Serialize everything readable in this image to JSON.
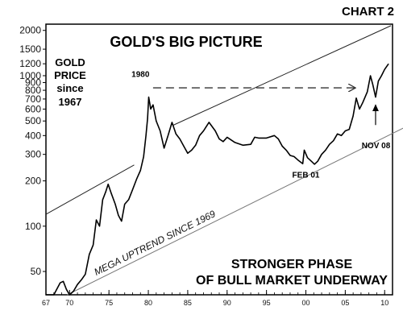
{
  "chart_label": "CHART 2",
  "chart_data": {
    "type": "line",
    "title": "GOLD'S BIG PICTURE",
    "side_label": [
      "GOLD",
      "PRICE",
      "since",
      "1967"
    ],
    "footer_caption": [
      "STRONGER PHASE",
      "OF BULL MARKET UNDERWAY"
    ],
    "y_scale": "log",
    "ylim": [
      35,
      2200
    ],
    "xlim": [
      1967,
      1911
    ],
    "y_ticks": [
      {
        "value": 2000,
        "label": "2000"
      },
      {
        "value": 1500,
        "label": "1500"
      },
      {
        "value": 1200,
        "label": "1200"
      },
      {
        "value": 1000,
        "label": "1000"
      },
      {
        "value": 900,
        "label": "900"
      },
      {
        "value": 800,
        "label": "800"
      },
      {
        "value": 700,
        "label": "700"
      },
      {
        "value": 600,
        "label": "600"
      },
      {
        "value": 500,
        "label": "500"
      },
      {
        "value": 400,
        "label": "400"
      },
      {
        "value": 300,
        "label": "300"
      },
      {
        "value": 200,
        "label": "200"
      },
      {
        "value": 100,
        "label": "100"
      },
      {
        "value": 50,
        "label": "50"
      }
    ],
    "x_ticks": [
      {
        "value": 1967,
        "label": "67"
      },
      {
        "value": 1970,
        "label": "70"
      },
      {
        "value": 1975,
        "label": "75"
      },
      {
        "value": 1980,
        "label": "80"
      },
      {
        "value": 1985,
        "label": "85"
      },
      {
        "value": 1990,
        "label": "90"
      },
      {
        "value": 1995,
        "label": "95"
      },
      {
        "value": 2000,
        "label": "00"
      },
      {
        "value": 2005,
        "label": "05"
      },
      {
        "value": 2010,
        "label": "10"
      }
    ],
    "series": [
      {
        "values": [
          {
            "x": 1967.0,
            "y": 35
          },
          {
            "x": 1968.0,
            "y": 35
          },
          {
            "x": 1968.8,
            "y": 42
          },
          {
            "x": 1969.2,
            "y": 43
          },
          {
            "x": 1969.6,
            "y": 38
          },
          {
            "x": 1970.0,
            "y": 35
          },
          {
            "x": 1970.5,
            "y": 37
          },
          {
            "x": 1971.0,
            "y": 41
          },
          {
            "x": 1971.5,
            "y": 44
          },
          {
            "x": 1972.0,
            "y": 48
          },
          {
            "x": 1972.5,
            "y": 65
          },
          {
            "x": 1973.0,
            "y": 75
          },
          {
            "x": 1973.4,
            "y": 110
          },
          {
            "x": 1973.8,
            "y": 100
          },
          {
            "x": 1974.2,
            "y": 150
          },
          {
            "x": 1974.6,
            "y": 170
          },
          {
            "x": 1974.9,
            "y": 190
          },
          {
            "x": 1975.3,
            "y": 165
          },
          {
            "x": 1975.8,
            "y": 140
          },
          {
            "x": 1976.2,
            "y": 118
          },
          {
            "x": 1976.6,
            "y": 108
          },
          {
            "x": 1977.0,
            "y": 140
          },
          {
            "x": 1977.5,
            "y": 150
          },
          {
            "x": 1978.0,
            "y": 175
          },
          {
            "x": 1978.5,
            "y": 205
          },
          {
            "x": 1979.0,
            "y": 235
          },
          {
            "x": 1979.4,
            "y": 290
          },
          {
            "x": 1979.7,
            "y": 400
          },
          {
            "x": 1979.9,
            "y": 520
          },
          {
            "x": 1980.05,
            "y": 720
          },
          {
            "x": 1980.3,
            "y": 600
          },
          {
            "x": 1980.6,
            "y": 640
          },
          {
            "x": 1981.0,
            "y": 500
          },
          {
            "x": 1981.5,
            "y": 430
          },
          {
            "x": 1982.0,
            "y": 330
          },
          {
            "x": 1982.5,
            "y": 400
          },
          {
            "x": 1983.0,
            "y": 490
          },
          {
            "x": 1983.5,
            "y": 410
          },
          {
            "x": 1984.0,
            "y": 380
          },
          {
            "x": 1984.5,
            "y": 340
          },
          {
            "x": 1985.0,
            "y": 305
          },
          {
            "x": 1985.5,
            "y": 320
          },
          {
            "x": 1986.0,
            "y": 345
          },
          {
            "x": 1986.5,
            "y": 400
          },
          {
            "x": 1987.0,
            "y": 430
          },
          {
            "x": 1987.7,
            "y": 490
          },
          {
            "x": 1988.5,
            "y": 430
          },
          {
            "x": 1989.0,
            "y": 380
          },
          {
            "x": 1989.5,
            "y": 365
          },
          {
            "x": 1990.0,
            "y": 390
          },
          {
            "x": 1991.0,
            "y": 360
          },
          {
            "x": 1992.0,
            "y": 345
          },
          {
            "x": 1993.0,
            "y": 350
          },
          {
            "x": 1993.5,
            "y": 390
          },
          {
            "x": 1994.0,
            "y": 385
          },
          {
            "x": 1995.0,
            "y": 385
          },
          {
            "x": 1996.0,
            "y": 400
          },
          {
            "x": 1996.5,
            "y": 380
          },
          {
            "x": 1997.0,
            "y": 340
          },
          {
            "x": 1997.5,
            "y": 320
          },
          {
            "x": 1998.0,
            "y": 295
          },
          {
            "x": 1998.5,
            "y": 290
          },
          {
            "x": 1999.0,
            "y": 275
          },
          {
            "x": 1999.6,
            "y": 260
          },
          {
            "x": 1999.8,
            "y": 320
          },
          {
            "x": 2000.2,
            "y": 285
          },
          {
            "x": 2000.7,
            "y": 270
          },
          {
            "x": 2001.1,
            "y": 258
          },
          {
            "x": 2001.5,
            "y": 270
          },
          {
            "x": 2002.0,
            "y": 300
          },
          {
            "x": 2002.5,
            "y": 320
          },
          {
            "x": 2003.0,
            "y": 350
          },
          {
            "x": 2003.5,
            "y": 370
          },
          {
            "x": 2004.0,
            "y": 410
          },
          {
            "x": 2004.5,
            "y": 400
          },
          {
            "x": 2005.0,
            "y": 430
          },
          {
            "x": 2005.5,
            "y": 440
          },
          {
            "x": 2006.0,
            "y": 540
          },
          {
            "x": 2006.4,
            "y": 710
          },
          {
            "x": 2006.8,
            "y": 600
          },
          {
            "x": 2007.2,
            "y": 660
          },
          {
            "x": 2007.8,
            "y": 780
          },
          {
            "x": 2008.2,
            "y": 1000
          },
          {
            "x": 2008.5,
            "y": 870
          },
          {
            "x": 2008.85,
            "y": 720
          },
          {
            "x": 2009.2,
            "y": 920
          },
          {
            "x": 2009.6,
            "y": 1000
          },
          {
            "x": 2010.0,
            "y": 1100
          },
          {
            "x": 2010.5,
            "y": 1200
          }
        ]
      }
    ],
    "trendlines": [
      {
        "label": "",
        "from": {
          "x": 1967.0,
          "y": 120
        },
        "to": {
          "x": 1978.2,
          "y": 255
        },
        "style": "solid"
      },
      {
        "label": "",
        "from": {
          "x": 1983.2,
          "y": 470
        },
        "to": {
          "x": 2010.8,
          "y": 2150
        },
        "style": "solid"
      },
      {
        "label": "MEGA UPTREND SINCE 1969",
        "from": {
          "x": 1969.7,
          "y": 35
        },
        "to": {
          "x": 2013.5,
          "y": 480
        },
        "style": "solid"
      }
    ],
    "annotations": [
      {
        "text": "1980",
        "x": 1979.0,
        "y": 980
      },
      {
        "text": "FEB 01",
        "x": 2000.0,
        "y": 210
      },
      {
        "text": "NOV 08",
        "x": 2008.9,
        "y": 330
      }
    ],
    "arrows": [
      {
        "from": {
          "x": 1980.6,
          "y": 830
        },
        "to": {
          "x": 2006.3,
          "y": 830
        },
        "style": "dashed"
      },
      {
        "from": {
          "x": 2008.85,
          "y": 470
        },
        "to": {
          "x": 2008.85,
          "y": 640
        },
        "style": "solid"
      }
    ],
    "grid": false,
    "legend": "none"
  }
}
